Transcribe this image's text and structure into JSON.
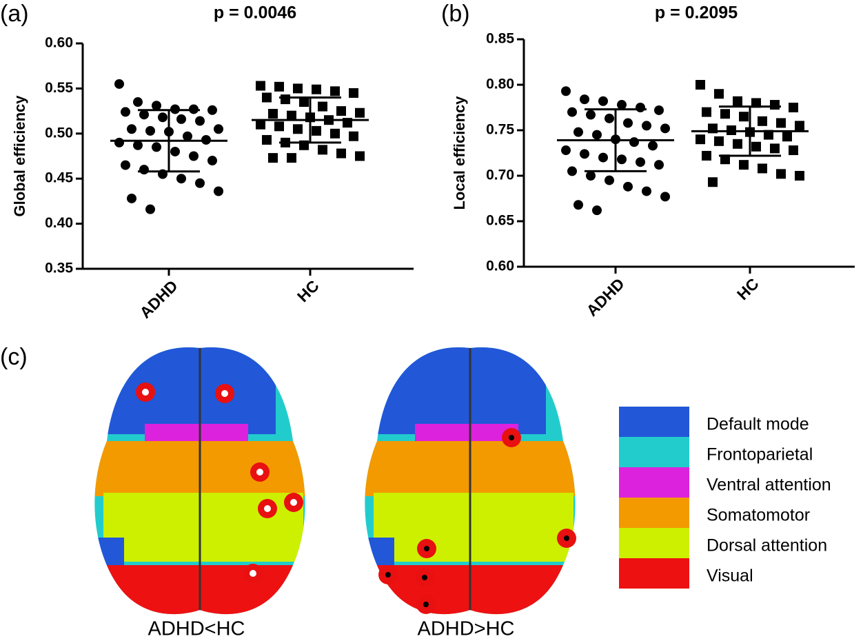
{
  "chart_data": [
    {
      "type": "dotplot",
      "panel_label": "(a)",
      "title": "p = 0.0046",
      "ylabel": "Global efficiency",
      "categories": [
        "ADHD",
        "HC"
      ],
      "groups": [
        {
          "marker": "circle",
          "mean": 0.492,
          "sd": 0.034,
          "values": [
            0.555,
            0.535,
            0.531,
            0.527,
            0.527,
            0.526,
            0.524,
            0.521,
            0.518,
            0.516,
            0.514,
            0.505,
            0.505,
            0.503,
            0.502,
            0.497,
            0.493,
            0.49,
            0.487,
            0.485,
            0.48,
            0.475,
            0.47,
            0.465,
            0.46,
            0.455,
            0.45,
            0.445,
            0.436,
            0.428,
            0.416
          ]
        },
        {
          "marker": "square",
          "mean": 0.515,
          "sd": 0.025,
          "values": [
            0.553,
            0.552,
            0.55,
            0.549,
            0.547,
            0.545,
            0.54,
            0.538,
            0.535,
            0.53,
            0.525,
            0.523,
            0.522,
            0.52,
            0.518,
            0.515,
            0.512,
            0.51,
            0.508,
            0.505,
            0.503,
            0.5,
            0.497,
            0.493,
            0.49,
            0.487,
            0.482,
            0.478,
            0.475,
            0.473,
            0.473
          ]
        }
      ],
      "color": "#000000",
      "ylim": [
        0.35,
        0.6
      ],
      "yticks": [
        0.35,
        {
          "value": 0.4,
          "label": "0.40"
        },
        0.45,
        {
          "value": 0.5,
          "label": "0.50"
        },
        0.55,
        {
          "value": 0.6,
          "label": "0.60"
        }
      ]
    },
    {
      "type": "dotplot",
      "panel_label": "(b)",
      "title": "p = 0.2095",
      "ylabel": "Local efficiency",
      "categories": [
        "ADHD",
        "HC"
      ],
      "groups": [
        {
          "marker": "circle",
          "mean": 0.739,
          "sd": 0.034,
          "values": [
            0.793,
            0.784,
            0.782,
            0.778,
            0.775,
            0.772,
            0.77,
            0.767,
            0.763,
            0.758,
            0.755,
            0.752,
            0.748,
            0.745,
            0.74,
            0.737,
            0.733,
            0.728,
            0.724,
            0.72,
            0.718,
            0.715,
            0.712,
            0.705,
            0.7,
            0.695,
            0.688,
            0.683,
            0.677,
            0.668,
            0.662
          ]
        },
        {
          "marker": "square",
          "mean": 0.749,
          "sd": 0.027,
          "values": [
            0.8,
            0.79,
            0.782,
            0.78,
            0.778,
            0.775,
            0.77,
            0.768,
            0.765,
            0.76,
            0.758,
            0.755,
            0.752,
            0.75,
            0.748,
            0.745,
            0.743,
            0.74,
            0.738,
            0.735,
            0.732,
            0.73,
            0.728,
            0.722,
            0.718,
            0.712,
            0.708,
            0.702,
            0.7,
            0.693
          ]
        }
      ],
      "color": "#000000",
      "ylim": [
        0.6,
        0.85
      ],
      "yticks": [
        {
          "value": 0.6,
          "label": "0.60"
        },
        0.65,
        {
          "value": 0.7,
          "label": "0.70"
        },
        0.75,
        {
          "value": 0.8,
          "label": "0.80"
        },
        0.85
      ]
    }
  ],
  "panel_c": {
    "label": "(c)",
    "captions": [
      "ADHD<HC",
      "ADHD>HC"
    ],
    "legend": [
      {
        "name": "Default mode",
        "color": "#2257d8"
      },
      {
        "name": "Frontoparietal",
        "color": "#22cccc"
      },
      {
        "name": "Ventral attention",
        "color": "#dd22dd"
      },
      {
        "name": "Somatomotor",
        "color": "#f39a00"
      },
      {
        "name": "Dorsal attention",
        "color": "#ccf000"
      },
      {
        "name": "Visual",
        "color": "#ee1111"
      }
    ]
  }
}
